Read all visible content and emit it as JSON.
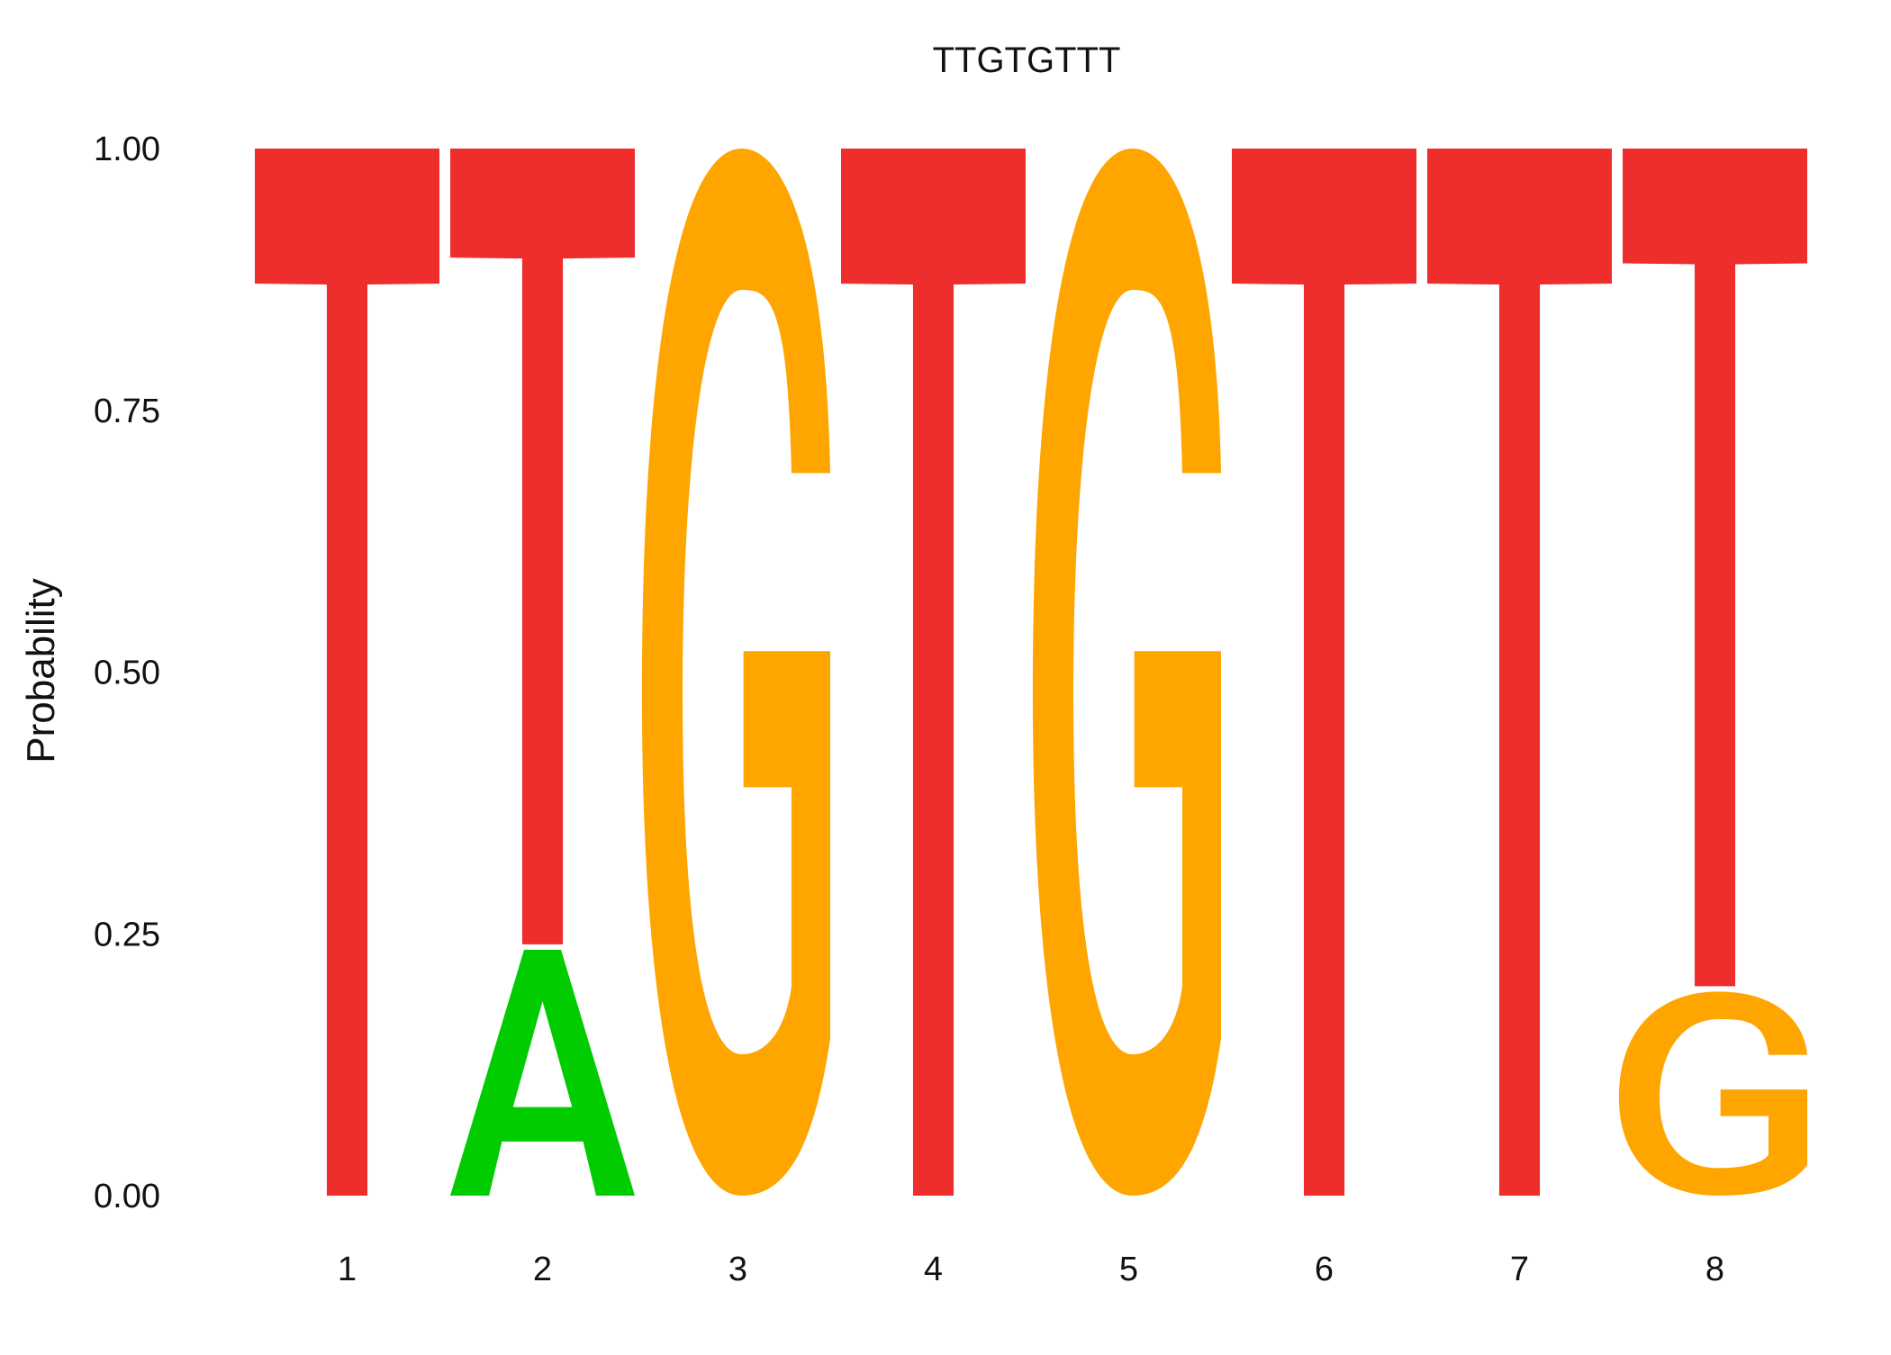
{
  "chart_data": {
    "type": "sequence-logo",
    "title": "TTGTGTTT",
    "ylabel": "Probability",
    "xlabel": "",
    "ylim": [
      0,
      1
    ],
    "yticks": [
      "0.00",
      "0.25",
      "0.50",
      "0.75",
      "1.00"
    ],
    "positions": [
      "1",
      "2",
      "3",
      "4",
      "5",
      "6",
      "7",
      "8"
    ],
    "colors": {
      "A": "#00cc00",
      "G": "#ffa500",
      "T": "#ee2d2d"
    },
    "columns": [
      {
        "position": "1",
        "letters": [
          {
            "base": "T",
            "prob": 1.0
          }
        ]
      },
      {
        "position": "2",
        "letters": [
          {
            "base": "A",
            "prob": 0.24
          },
          {
            "base": "T",
            "prob": 0.76
          }
        ]
      },
      {
        "position": "3",
        "letters": [
          {
            "base": "G",
            "prob": 1.0
          }
        ]
      },
      {
        "position": "4",
        "letters": [
          {
            "base": "T",
            "prob": 1.0
          }
        ]
      },
      {
        "position": "5",
        "letters": [
          {
            "base": "G",
            "prob": 1.0
          }
        ]
      },
      {
        "position": "6",
        "letters": [
          {
            "base": "T",
            "prob": 1.0
          }
        ]
      },
      {
        "position": "7",
        "letters": [
          {
            "base": "T",
            "prob": 1.0
          }
        ]
      },
      {
        "position": "8",
        "letters": [
          {
            "base": "G",
            "prob": 0.2
          },
          {
            "base": "T",
            "prob": 0.8
          }
        ]
      }
    ]
  }
}
